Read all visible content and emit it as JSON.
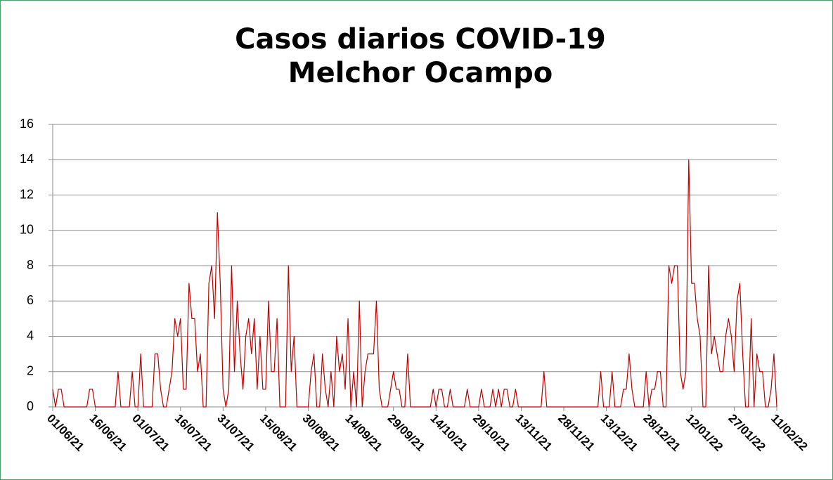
{
  "chart_data": {
    "type": "line",
    "title": "Casos diarios COVID-19",
    "subtitle": "Melchor Ocampo",
    "categories": [
      "01/06/21",
      null,
      null,
      null,
      null,
      null,
      null,
      null,
      null,
      null,
      null,
      null,
      null,
      null,
      null,
      "16/06/21",
      null,
      null,
      null,
      null,
      null,
      null,
      null,
      null,
      null,
      null,
      null,
      null,
      null,
      null,
      "01/07/21",
      null,
      null,
      null,
      null,
      null,
      null,
      null,
      null,
      null,
      null,
      null,
      null,
      null,
      null,
      "16/07/21",
      null,
      null,
      null,
      null,
      null,
      null,
      null,
      null,
      null,
      null,
      null,
      null,
      null,
      null,
      "31/07/21",
      null,
      null,
      null,
      null,
      null,
      null,
      null,
      null,
      null,
      null,
      null,
      null,
      null,
      null,
      "15/08/21",
      null,
      null,
      null,
      null,
      null,
      null,
      null,
      null,
      null,
      null,
      null,
      null,
      null,
      null,
      "30/08/21",
      null,
      null,
      null,
      null,
      null,
      null,
      null,
      null,
      null,
      null,
      null,
      null,
      null,
      null,
      "14/09/21",
      null,
      null,
      null,
      null,
      null,
      null,
      null,
      null,
      null,
      null,
      null,
      null,
      null,
      null,
      "29/09/21",
      null,
      null,
      null,
      null,
      null,
      null,
      null,
      null,
      null,
      null,
      null,
      null,
      null,
      null,
      "14/10/21",
      null,
      null,
      null,
      null,
      null,
      null,
      null,
      null,
      null,
      null,
      null,
      null,
      null,
      null,
      "29/10/21",
      null,
      null,
      null,
      null,
      null,
      null,
      null,
      null,
      null,
      null,
      null,
      null,
      null,
      null,
      "13/11/21",
      null,
      null,
      null,
      null,
      null,
      null,
      null,
      null,
      null,
      null,
      null,
      null,
      null,
      null,
      "28/11/21",
      null,
      null,
      null,
      null,
      null,
      null,
      null,
      null,
      null,
      null,
      null,
      null,
      null,
      null,
      "13/12/21",
      null,
      null,
      null,
      null,
      null,
      null,
      null,
      null,
      null,
      null,
      null,
      null,
      null,
      null,
      "28/12/21",
      null,
      null,
      null,
      null,
      null,
      null,
      null,
      null,
      null,
      null,
      null,
      null,
      null,
      null,
      "12/01/22",
      null,
      null,
      null,
      null,
      null,
      null,
      null,
      null,
      null,
      null,
      null,
      null,
      null,
      null,
      "27/01/22",
      null,
      null,
      null,
      null,
      null,
      null,
      null,
      null,
      null,
      null,
      null,
      null,
      null,
      null,
      "11/02/22"
    ],
    "values": [
      1,
      0,
      1,
      1,
      0,
      0,
      0,
      0,
      0,
      0,
      0,
      0,
      0,
      1,
      1,
      0,
      0,
      0,
      0,
      0,
      0,
      0,
      0,
      2,
      0,
      0,
      0,
      0,
      2,
      0,
      0,
      3,
      0,
      0,
      0,
      0,
      3,
      3,
      1,
      0,
      0,
      1,
      2,
      5,
      4,
      5,
      1,
      1,
      7,
      5,
      5,
      2,
      3,
      0,
      0,
      7,
      8,
      5,
      11,
      7,
      1,
      0,
      1,
      8,
      2,
      6,
      3,
      1,
      4,
      5,
      3,
      5,
      1,
      4,
      1,
      1,
      6,
      2,
      2,
      5,
      0,
      0,
      0,
      8,
      2,
      4,
      0,
      0,
      0,
      0,
      0,
      2,
      3,
      0,
      0,
      3,
      1,
      0,
      2,
      0,
      4,
      2,
      3,
      1,
      5,
      0,
      2,
      0,
      6,
      0,
      2,
      3,
      3,
      3,
      6,
      1,
      0,
      0,
      0,
      1,
      2,
      1,
      1,
      0,
      0,
      3,
      0,
      0,
      0,
      0,
      0,
      0,
      0,
      0,
      1,
      0,
      1,
      1,
      0,
      0,
      1,
      0,
      0,
      0,
      0,
      0,
      1,
      0,
      0,
      0,
      0,
      1,
      0,
      0,
      0,
      1,
      0,
      1,
      0,
      1,
      1,
      0,
      0,
      1,
      0,
      0,
      0,
      0,
      0,
      0,
      0,
      0,
      0,
      2,
      0,
      0,
      0,
      0,
      0,
      0,
      0,
      0,
      0,
      0,
      0,
      0,
      0,
      0,
      0,
      0,
      0,
      0,
      0,
      2,
      0,
      0,
      0,
      2,
      0,
      0,
      0,
      1,
      1,
      3,
      1,
      0,
      0,
      0,
      0,
      2,
      0,
      1,
      1,
      2,
      2,
      0,
      0,
      8,
      7,
      8,
      8,
      2,
      1,
      2,
      14,
      7,
      7,
      5,
      4,
      0,
      0,
      8,
      3,
      4,
      3,
      2,
      2,
      4,
      5,
      4,
      2,
      6,
      7,
      3,
      0,
      0,
      5,
      0,
      3,
      2,
      2,
      0,
      0,
      1,
      3,
      0
    ],
    "color": "#c00000",
    "ylim": [
      0,
      16
    ],
    "yticks": [
      0,
      2,
      4,
      6,
      8,
      10,
      12,
      14,
      16
    ],
    "grid": true
  }
}
